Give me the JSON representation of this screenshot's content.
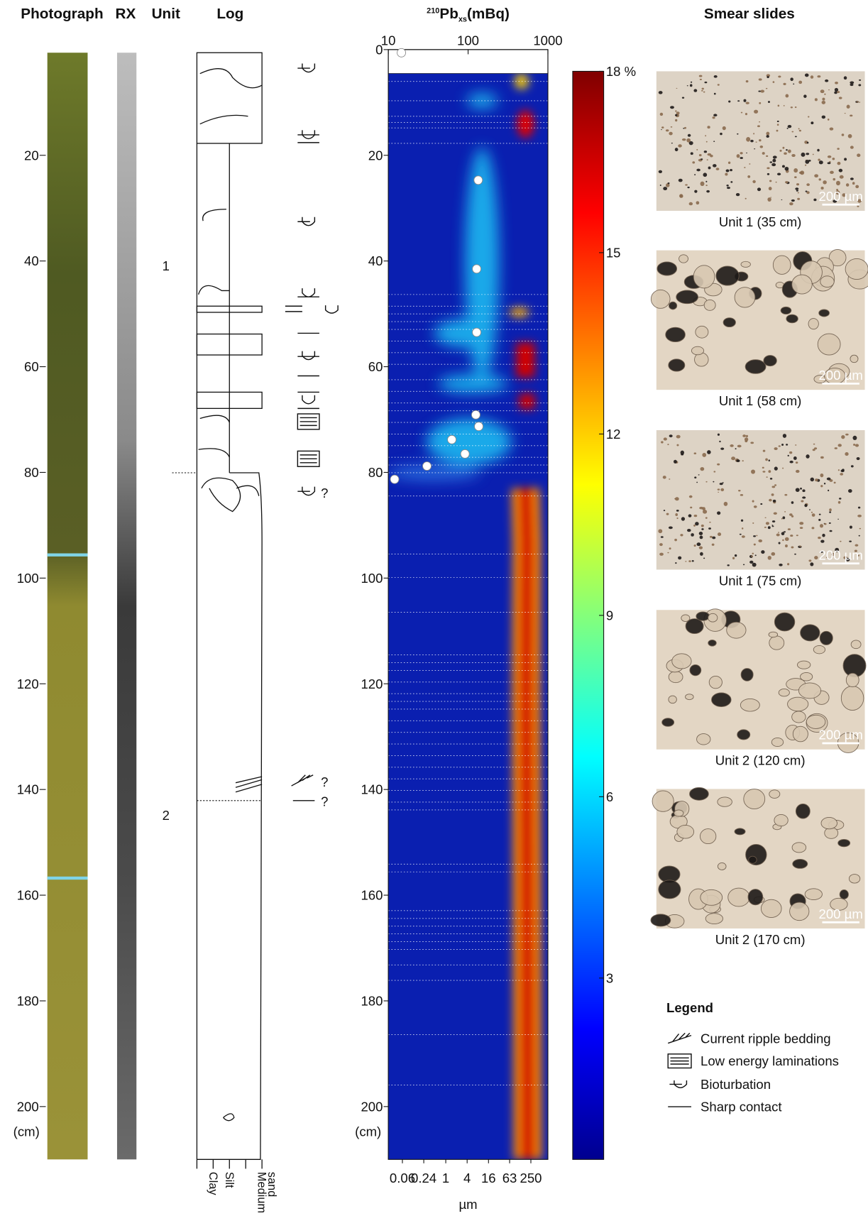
{
  "headers": {
    "photograph": "Photograph",
    "rx": "RX",
    "unit": "Unit",
    "log": "Log",
    "smear": "Smear slides"
  },
  "depth_axis": {
    "ylim": [
      0,
      210
    ],
    "yticks": [
      20,
      40,
      60,
      80,
      100,
      120,
      140,
      160,
      180,
      200
    ],
    "unit_label": "(cm)"
  },
  "units": [
    "1",
    "2"
  ],
  "grain_classes": [
    "Clay",
    "Silt",
    [
      "Medium",
      "sand"
    ]
  ],
  "chart_data": [
    {
      "type": "scatter",
      "title_sup": "210",
      "title": "Pb",
      "title_sub": "xs",
      "title_suffix": "(mBq)",
      "x": [
        14.6,
        134,
        128,
        128,
        125,
        136,
        62.5,
        91.4,
        30.5,
        12
      ],
      "y": [
        0.6,
        24.7,
        41.5,
        53.5,
        69.1,
        71.3,
        73.8,
        76.5,
        78.8,
        81.3
      ],
      "xlim": [
        10,
        1000
      ],
      "xticks": [
        10,
        100,
        1000
      ],
      "log_x": true,
      "ylim": [
        0,
        210
      ],
      "yticks": [
        0,
        20,
        40,
        60,
        80,
        100,
        120,
        140,
        160,
        180,
        200
      ],
      "y_unit_label": "(cm)",
      "color": "#ffffff"
    },
    {
      "type": "heatmap",
      "x_label": "µm",
      "xlim": [
        0.024,
        755
      ],
      "log_x": true,
      "xticks": [
        0.06,
        0.24,
        1,
        4,
        16,
        63,
        250
      ],
      "ylim": [
        0,
        210
      ],
      "colorbar": {
        "zlim": [
          0,
          18
        ],
        "zticks": [
          3,
          6,
          9,
          12,
          15,
          {
            "value": 18,
            "label": "18 %"
          }
        ]
      }
    }
  ],
  "slides": [
    {
      "caption": "Unit 1 (35 cm)",
      "scale": "200 µm"
    },
    {
      "caption": "Unit 1 (58 cm)",
      "scale": "200 µm"
    },
    {
      "caption": "Unit 1 (75 cm)",
      "scale": "200 µm"
    },
    {
      "caption": "Unit 2 (120 cm)",
      "scale": "200 µm"
    },
    {
      "caption": "Unit 2 (170 cm)",
      "scale": "200 µm"
    }
  ],
  "legend": {
    "title": "Legend",
    "items": [
      "Current ripple bedding",
      "Low energy laminations",
      "Bioturbation",
      "Sharp contact"
    ]
  }
}
